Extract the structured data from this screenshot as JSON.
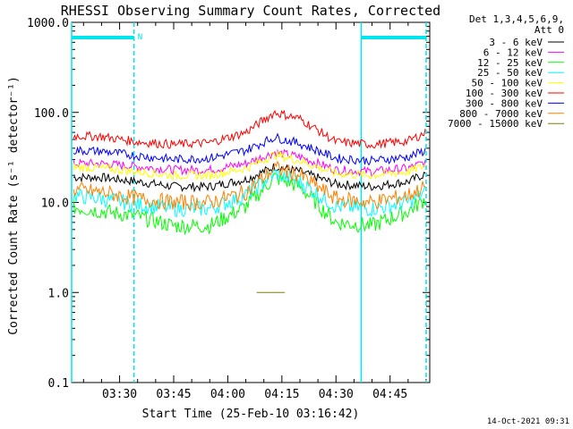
{
  "chart_data": {
    "type": "line",
    "title": "RHESSI Observing Summary Count Rates, Corrected",
    "xlabel": "Start Time (25-Feb-10 03:16:42)",
    "ylabel": "Corrected Count Rate (s⁻¹ detector⁻¹)",
    "y_scale": "log",
    "ylim": [
      0.1,
      1000
    ],
    "xlim": [
      "03:16:42",
      "04:56:00"
    ],
    "y_ticks": [
      "1000.0",
      "100.0",
      "10.0",
      "1.0",
      "0.1"
    ],
    "x_ticks": [
      "03:30",
      "03:45",
      "04:00",
      "04:15",
      "04:30",
      "04:45"
    ],
    "legend_placement": "right, outside plot",
    "legend_header": [
      "Det 1,3,4,5,6,9,",
      "Att 0"
    ],
    "series": [
      {
        "name": "3 - 6 keV",
        "color": "#000000",
        "x": [
          "03:16",
          "03:25",
          "03:35",
          "03:45",
          "03:55",
          "04:05",
          "04:13",
          "04:20",
          "04:30",
          "04:40",
          "04:50",
          "04:55"
        ],
        "values": [
          19,
          19,
          17,
          15,
          15,
          18,
          25,
          22,
          16,
          15,
          17,
          21
        ]
      },
      {
        "name": "6 - 12 keV",
        "color": "#ff00ff",
        "x": [
          "03:16",
          "03:25",
          "03:35",
          "03:45",
          "03:55",
          "04:05",
          "04:13",
          "04:20",
          "04:30",
          "04:40",
          "04:50",
          "04:55"
        ],
        "values": [
          27,
          27,
          25,
          23,
          23,
          27,
          36,
          32,
          23,
          22,
          24,
          28
        ]
      },
      {
        "name": "12 - 25 keV",
        "color": "#00ff00",
        "x": [
          "03:16",
          "03:25",
          "03:35",
          "03:45",
          "03:55",
          "04:05",
          "04:13",
          "04:20",
          "04:30",
          "04:40",
          "04:50",
          "04:55"
        ],
        "values": [
          9,
          8,
          7,
          5.5,
          5.5,
          9,
          19,
          15,
          6,
          5.5,
          8,
          11
        ]
      },
      {
        "name": "25 - 50 keV",
        "color": "#00ffff",
        "x": [
          "03:16",
          "03:25",
          "03:35",
          "03:45",
          "03:55",
          "04:05",
          "04:13",
          "04:20",
          "04:30",
          "04:40",
          "04:50",
          "04:55"
        ],
        "values": [
          12,
          11,
          9.5,
          8.5,
          8.5,
          12,
          21,
          17,
          9,
          8.5,
          10,
          13
        ]
      },
      {
        "name": "50 - 100 keV",
        "color": "#ffff00",
        "x": [
          "03:16",
          "03:25",
          "03:35",
          "03:45",
          "03:55",
          "04:05",
          "04:13",
          "04:20",
          "04:30",
          "04:40",
          "04:50",
          "04:55"
        ],
        "values": [
          25,
          24,
          22,
          20,
          20,
          24,
          34,
          29,
          21,
          20,
          22,
          26
        ]
      },
      {
        "name": "100 - 300 keV",
        "color": "#ff0000",
        "x": [
          "03:16",
          "03:25",
          "03:35",
          "03:45",
          "03:55",
          "04:05",
          "04:13",
          "04:20",
          "04:30",
          "04:40",
          "04:50",
          "04:55"
        ],
        "values": [
          55,
          54,
          47,
          44,
          46,
          60,
          100,
          85,
          47,
          44,
          48,
          60
        ]
      },
      {
        "name": "300 - 800 keV",
        "color": "#0000ff",
        "x": [
          "03:16",
          "03:25",
          "03:35",
          "03:45",
          "03:55",
          "04:05",
          "04:13",
          "04:20",
          "04:30",
          "04:40",
          "04:50",
          "04:55"
        ],
        "values": [
          38,
          37,
          33,
          30,
          31,
          38,
          53,
          45,
          31,
          29,
          32,
          38
        ]
      },
      {
        "name": "800 - 7000 keV",
        "color": "#ff8000",
        "x": [
          "03:16",
          "03:25",
          "03:35",
          "03:45",
          "03:55",
          "04:05",
          "04:13",
          "04:20",
          "04:30",
          "04:40",
          "04:50",
          "04:55"
        ],
        "values": [
          14,
          13,
          11,
          10,
          10,
          13,
          24,
          20,
          11,
          10,
          12,
          15
        ]
      },
      {
        "name": "7000 - 15000 keV",
        "color": "#808000",
        "x": [
          "04:08",
          "04:12",
          "04:16"
        ],
        "values": [
          1.0,
          1.0,
          1.0
        ]
      }
    ],
    "flags": [
      {
        "label": "N",
        "start": "03:16",
        "end": "03:34"
      },
      {
        "label": "",
        "start": "04:37",
        "end": "04:55"
      }
    ],
    "footer_timestamp": "14-Oct-2021 09:31"
  }
}
